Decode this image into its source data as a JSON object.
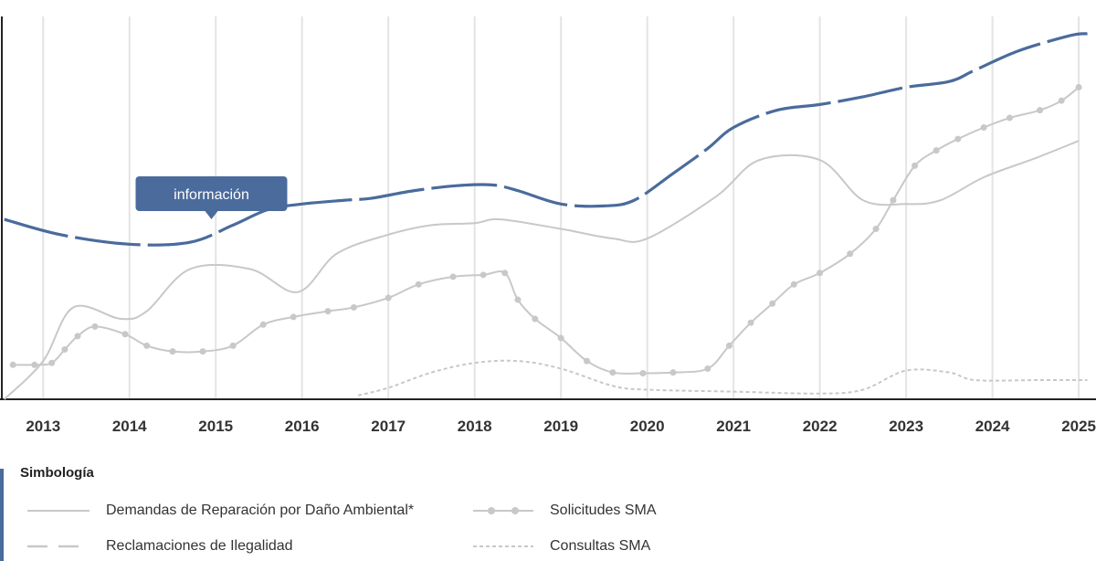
{
  "chart_data": {
    "type": "line",
    "categories": [
      "2013",
      "2014",
      "2015",
      "2016",
      "2017",
      "2018",
      "2019",
      "2020",
      "2021",
      "2022",
      "2023",
      "2024",
      "2025"
    ],
    "x_range": [
      2012.5,
      2025.2
    ],
    "y_range": [
      0,
      100
    ],
    "series": [
      {
        "name": "Reclamaciones de Ilegalidad",
        "color": "#4a6b9c",
        "style": "dashed-thick",
        "points": [
          [
            2012.55,
            47
          ],
          [
            2013.2,
            43
          ],
          [
            2014.0,
            40.5
          ],
          [
            2014.7,
            41
          ],
          [
            2015.2,
            45.5
          ],
          [
            2015.6,
            49.5
          ],
          [
            2016.0,
            51
          ],
          [
            2016.5,
            52
          ],
          [
            2016.8,
            52.5
          ],
          [
            2017.3,
            54.5
          ],
          [
            2017.8,
            55.8
          ],
          [
            2018.2,
            56
          ],
          [
            2018.5,
            54.5
          ],
          [
            2019.0,
            51
          ],
          [
            2019.5,
            50.5
          ],
          [
            2019.85,
            52
          ],
          [
            2020.3,
            59
          ],
          [
            2020.7,
            65.5
          ],
          [
            2021.0,
            71
          ],
          [
            2021.5,
            75.5
          ],
          [
            2022.0,
            77
          ],
          [
            2022.5,
            79
          ],
          [
            2023.0,
            81.5
          ],
          [
            2023.5,
            83
          ],
          [
            2023.8,
            86
          ],
          [
            2024.3,
            91
          ],
          [
            2024.9,
            95
          ],
          [
            2025.1,
            95.5
          ]
        ]
      },
      {
        "name": "Demandas de Reparación por Daño Ambiental*",
        "color": "#c8c8c8",
        "style": "solid",
        "points": [
          [
            2012.55,
            0
          ],
          [
            2013.0,
            10
          ],
          [
            2013.35,
            24
          ],
          [
            2013.9,
            21
          ],
          [
            2014.2,
            23
          ],
          [
            2014.7,
            34
          ],
          [
            2015.4,
            34
          ],
          [
            2015.95,
            28
          ],
          [
            2016.4,
            38
          ],
          [
            2017.0,
            43
          ],
          [
            2017.5,
            45.5
          ],
          [
            2018.0,
            46
          ],
          [
            2018.3,
            47
          ],
          [
            2019.0,
            44.5
          ],
          [
            2019.6,
            42
          ],
          [
            2020.0,
            42
          ],
          [
            2020.8,
            53
          ],
          [
            2021.3,
            62.5
          ],
          [
            2022.0,
            62.5
          ],
          [
            2022.5,
            52
          ],
          [
            2023.0,
            51
          ],
          [
            2023.4,
            52
          ],
          [
            2023.9,
            58
          ],
          [
            2024.5,
            63
          ],
          [
            2025.0,
            67.5
          ]
        ]
      },
      {
        "name": "Solicitudes SMA",
        "color": "#c8c8c8",
        "style": "solid-dots",
        "points": [
          [
            2012.65,
            9
          ],
          [
            2012.9,
            9
          ],
          [
            2013.1,
            9.5
          ],
          [
            2013.25,
            13
          ],
          [
            2013.4,
            16.5
          ],
          [
            2013.6,
            19
          ],
          [
            2013.95,
            17
          ],
          [
            2014.2,
            14
          ],
          [
            2014.5,
            12.5
          ],
          [
            2014.85,
            12.5
          ],
          [
            2015.2,
            14
          ],
          [
            2015.55,
            19.5
          ],
          [
            2015.9,
            21.5
          ],
          [
            2016.3,
            23
          ],
          [
            2016.6,
            24
          ],
          [
            2017.0,
            26.5
          ],
          [
            2017.35,
            30
          ],
          [
            2017.75,
            32
          ],
          [
            2018.1,
            32.5
          ],
          [
            2018.35,
            33
          ],
          [
            2018.5,
            26
          ],
          [
            2018.7,
            21
          ],
          [
            2019.0,
            16
          ],
          [
            2019.3,
            10
          ],
          [
            2019.6,
            7
          ],
          [
            2019.95,
            6.8
          ],
          [
            2020.3,
            7
          ],
          [
            2020.7,
            8
          ],
          [
            2020.95,
            14
          ],
          [
            2021.2,
            20
          ],
          [
            2021.45,
            25
          ],
          [
            2021.7,
            30
          ],
          [
            2022.0,
            33
          ],
          [
            2022.35,
            38
          ],
          [
            2022.65,
            44.5
          ],
          [
            2022.85,
            52
          ],
          [
            2023.1,
            61
          ],
          [
            2023.35,
            65
          ],
          [
            2023.6,
            68
          ],
          [
            2023.9,
            71
          ],
          [
            2024.2,
            73.5
          ],
          [
            2024.55,
            75.5
          ],
          [
            2024.8,
            78
          ],
          [
            2025.0,
            81.5
          ]
        ]
      },
      {
        "name": "Consultas SMA",
        "color": "#c8c8c8",
        "style": "dotted",
        "points": [
          [
            2016.65,
            1
          ],
          [
            2017.0,
            3
          ],
          [
            2017.5,
            7
          ],
          [
            2018.0,
            9.5
          ],
          [
            2018.5,
            10
          ],
          [
            2019.0,
            8
          ],
          [
            2019.6,
            3.5
          ],
          [
            2020.0,
            2.5
          ],
          [
            2021.0,
            2
          ],
          [
            2022.0,
            1.5
          ],
          [
            2022.5,
            2.5
          ],
          [
            2023.0,
            7.5
          ],
          [
            2023.5,
            7
          ],
          [
            2023.8,
            5
          ],
          [
            2024.5,
            5
          ],
          [
            2025.1,
            5
          ]
        ]
      }
    ],
    "annotation": {
      "text": "información",
      "x": 2014.95,
      "color": "#4a6b9c"
    },
    "grid": true,
    "legend_placement": "bottom"
  },
  "legend": {
    "title": "Simbología",
    "items": [
      "Demandas de Reparación por Daño Ambiental*",
      "Solicitudes SMA",
      "Reclamaciones de Ilegalidad",
      "Consultas SMA"
    ]
  }
}
